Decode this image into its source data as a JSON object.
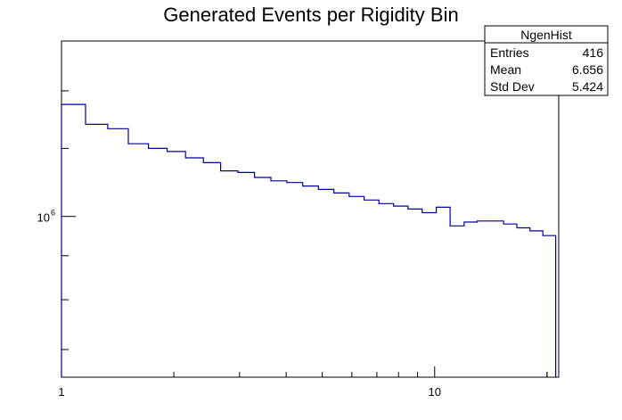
{
  "chart_data": {
    "type": "histogram",
    "title": "Generated Events per Rigidity Bin",
    "x_scale": "log",
    "y_scale": "log",
    "xlim": [
      1,
      21.5
    ],
    "ylim": [
      650000,
      1600000
    ],
    "x_tick_labels": [
      {
        "value": 1,
        "label": "1"
      },
      {
        "value": 10,
        "label": "10"
      }
    ],
    "y_tick_labels": [
      {
        "value": 1000000,
        "base": "10",
        "exponent": "6"
      }
    ],
    "line_color": "#000099",
    "bin_edges": [
      1.0,
      1.16,
      1.33,
      1.51,
      1.71,
      1.92,
      2.15,
      2.4,
      2.67,
      2.97,
      3.29,
      3.64,
      4.02,
      4.43,
      4.88,
      5.37,
      5.9,
      6.47,
      7.09,
      7.76,
      8.48,
      9.26,
      10.1,
      11.0,
      12.0,
      13.0,
      14.1,
      15.3,
      16.6,
      18.0,
      19.5,
      21.1
    ],
    "values": [
      1350000,
      1280000,
      1265000,
      1215000,
      1200000,
      1190000,
      1170000,
      1155000,
      1130000,
      1125000,
      1110000,
      1100000,
      1095000,
      1085000,
      1075000,
      1065000,
      1055000,
      1045000,
      1035000,
      1028000,
      1020000,
      1010000,
      1025000,
      975000,
      985000,
      988000,
      988000,
      980000,
      970000,
      962000,
      950000
    ],
    "stats": {
      "name": "NgenHist",
      "rows": [
        {
          "label": "Entries",
          "value": "416"
        },
        {
          "label": "Mean",
          "value": "6.656"
        },
        {
          "label": "Std Dev",
          "value": "5.424"
        }
      ]
    }
  }
}
